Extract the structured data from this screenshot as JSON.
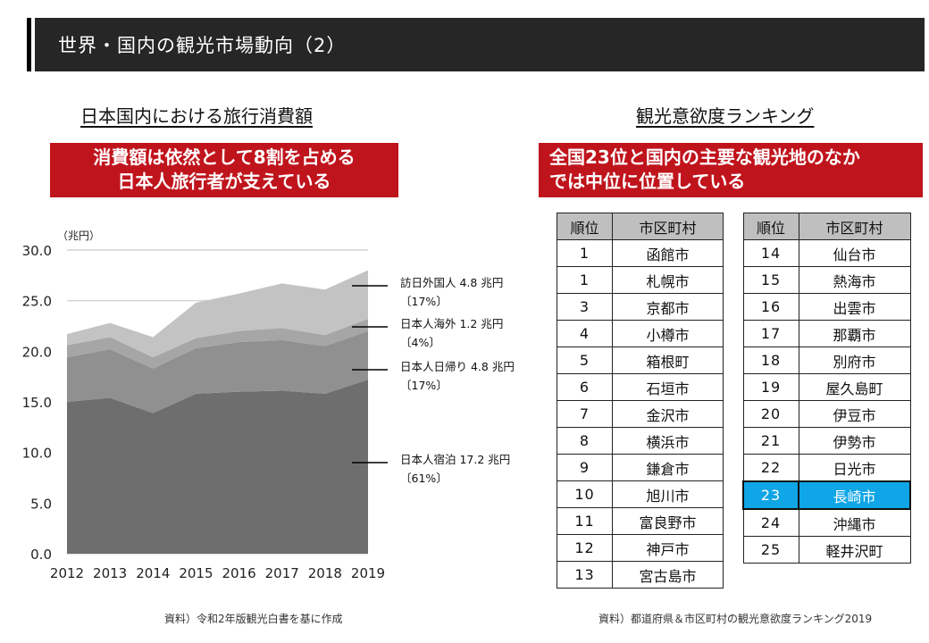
{
  "header": {
    "title": "世界・国内の観光市場動向（2）"
  },
  "left": {
    "section_title": "日本国内における旅行消費額",
    "callout_lines": [
      "消費額は依然として8割を占める",
      "日本人旅行者が支えている"
    ],
    "source": "資料）令和2年版観光白書を基に作成"
  },
  "right": {
    "section_title": "観光意欲度ランキング",
    "callout_lines": [
      "全国23位と国内の主要な観光地のなか",
      "では中位に位置している"
    ],
    "source": "資料）都道府県＆市区町村の観光意欲度ランキング2019",
    "table_headers": [
      "順位",
      "市区町村"
    ],
    "table1": [
      {
        "rank": "1",
        "city": "函館市"
      },
      {
        "rank": "1",
        "city": "札幌市"
      },
      {
        "rank": "3",
        "city": "京都市"
      },
      {
        "rank": "4",
        "city": "小樽市"
      },
      {
        "rank": "5",
        "city": "箱根町"
      },
      {
        "rank": "6",
        "city": "石垣市"
      },
      {
        "rank": "7",
        "city": "金沢市"
      },
      {
        "rank": "8",
        "city": "横浜市"
      },
      {
        "rank": "9",
        "city": "鎌倉市"
      },
      {
        "rank": "10",
        "city": "旭川市"
      },
      {
        "rank": "11",
        "city": "富良野市"
      },
      {
        "rank": "12",
        "city": "神戸市"
      },
      {
        "rank": "13",
        "city": "宮古島市"
      }
    ],
    "table2": [
      {
        "rank": "14",
        "city": "仙台市"
      },
      {
        "rank": "15",
        "city": "熱海市"
      },
      {
        "rank": "16",
        "city": "出雲市"
      },
      {
        "rank": "17",
        "city": "那覇市"
      },
      {
        "rank": "18",
        "city": "別府市"
      },
      {
        "rank": "19",
        "city": "屋久島町"
      },
      {
        "rank": "20",
        "city": "伊豆市"
      },
      {
        "rank": "21",
        "city": "伊勢市"
      },
      {
        "rank": "22",
        "city": "日光市"
      },
      {
        "rank": "23",
        "city": "長崎市",
        "highlight": true
      },
      {
        "rank": "24",
        "city": "沖縄市"
      },
      {
        "rank": "25",
        "city": "軽井沢町"
      }
    ],
    "highlight_color": "#0FA5E6"
  },
  "colors": {
    "header_bg": "#262626",
    "callout_bg": "#C0141C",
    "table_header_bg": "#BFBFBF"
  },
  "chart_data": {
    "type": "area",
    "stacked": true,
    "title": "日本国内における旅行消費額",
    "unit_label": "（兆円）",
    "xlabel": "",
    "ylabel": "兆円",
    "x": [
      "2012",
      "2013",
      "2014",
      "2015",
      "2016",
      "2017",
      "2018",
      "2019"
    ],
    "ylim": [
      0,
      30
    ],
    "yticks": [
      "0.0",
      "5.0",
      "10.0",
      "15.0",
      "20.0",
      "25.0",
      "30.0"
    ],
    "grid": true,
    "series": [
      {
        "name": "日本人宿泊",
        "color": "#6E6E6E",
        "values": [
          15.0,
          15.4,
          13.9,
          15.8,
          16.0,
          16.1,
          15.8,
          17.2
        ]
      },
      {
        "name": "日本人日帰り",
        "color": "#909090",
        "values": [
          4.4,
          4.8,
          4.4,
          4.5,
          4.9,
          5.0,
          4.7,
          4.8
        ]
      },
      {
        "name": "日本人海外",
        "color": "#A6A6A6",
        "values": [
          1.2,
          1.2,
          1.1,
          1.0,
          1.1,
          1.2,
          1.1,
          1.2
        ]
      },
      {
        "name": "訪日外国人",
        "color": "#C3C3C3",
        "values": [
          1.1,
          1.4,
          2.0,
          3.5,
          3.7,
          4.4,
          4.5,
          4.8
        ]
      }
    ],
    "annotations": [
      {
        "series": "訪日外国人",
        "line1": "訪日外国人 4.8 兆円",
        "line2": "〔17%〕"
      },
      {
        "series": "日本人海外",
        "line1": "日本人海外 1.2 兆円",
        "line2": "〔4%〕"
      },
      {
        "series": "日本人日帰り",
        "line1": "日本人日帰り 4.8 兆円",
        "line2": "〔17%〕"
      },
      {
        "series": "日本人宿泊",
        "line1": "日本人宿泊 17.2 兆円",
        "line2": "〔61%〕"
      }
    ]
  }
}
